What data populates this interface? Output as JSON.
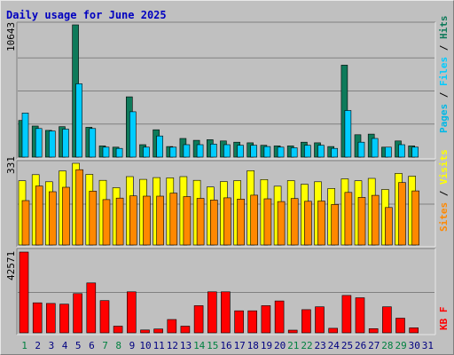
{
  "title": "Daily usage for June 2025",
  "colors": {
    "hits": "#0e7a5a",
    "files": "#00ccff",
    "pages": "#00b8e6",
    "visits": "#ffff00",
    "sites": "#ff8800",
    "kbytes": "#ff0000",
    "weekend_label": "#008040",
    "weekday_label": "#000080"
  },
  "chart_data": [
    {
      "type": "bar",
      "panel": "hits_files_pages",
      "title": "Daily usage for June 2025",
      "categories": [
        "1",
        "2",
        "3",
        "4",
        "5",
        "6",
        "7",
        "8",
        "9",
        "10",
        "11",
        "12",
        "13",
        "14",
        "15",
        "16",
        "17",
        "18",
        "19",
        "20",
        "21",
        "22",
        "23",
        "24",
        "25",
        "26",
        "27",
        "28",
        "29",
        "30",
        "31"
      ],
      "weekend_days": [
        "1",
        "7",
        "8",
        "14",
        "15",
        "21",
        "22",
        "28",
        "29"
      ],
      "ylim": [
        0,
        10643
      ],
      "y_max_label": "10643",
      "series": [
        {
          "name": "Hits",
          "values": [
            2950,
            2500,
            2150,
            2450,
            10643,
            2400,
            900,
            800,
            4850,
            1000,
            2200,
            850,
            1500,
            1350,
            1400,
            1300,
            1200,
            1150,
            950,
            900,
            900,
            1200,
            1150,
            850,
            7400,
            1800,
            1850,
            800,
            1300,
            900,
            0
          ]
        },
        {
          "name": "Files",
          "values": [
            3550,
            2300,
            2100,
            2250,
            5900,
            2300,
            800,
            700,
            3650,
            800,
            1700,
            800,
            1000,
            1000,
            1050,
            1000,
            950,
            950,
            850,
            800,
            750,
            950,
            950,
            700,
            3750,
            1200,
            1500,
            800,
            1000,
            800,
            0
          ]
        },
        {
          "name": "Pages",
          "values": [
            1200,
            700,
            500,
            1000,
            1550,
            900,
            300,
            250,
            1100,
            350,
            600,
            200,
            400,
            350,
            400,
            350,
            300,
            350,
            250,
            250,
            300,
            300,
            300,
            200,
            1550,
            400,
            500,
            250,
            400,
            250,
            0
          ]
        }
      ],
      "legend": [
        "Pages",
        "Files",
        "Hits"
      ]
    },
    {
      "type": "bar",
      "panel": "visits_sites",
      "categories": [
        "1",
        "2",
        "3",
        "4",
        "5",
        "6",
        "7",
        "8",
        "9",
        "10",
        "11",
        "12",
        "13",
        "14",
        "15",
        "16",
        "17",
        "18",
        "19",
        "20",
        "21",
        "22",
        "23",
        "24",
        "25",
        "26",
        "27",
        "28",
        "29",
        "30",
        "31"
      ],
      "ylim": [
        0,
        331
      ],
      "y_max_label": "331",
      "series": [
        {
          "name": "Visits",
          "values": [
            260,
            285,
            256,
            300,
            331,
            286,
            262,
            232,
            277,
            266,
            273,
            272,
            277,
            262,
            235,
            257,
            261,
            301,
            265,
            238,
            261,
            246,
            256,
            229,
            268,
            260,
            270,
            225,
            290,
            279,
            0
          ]
        },
        {
          "name": "Sites",
          "values": [
            180,
            239,
            216,
            234,
            305,
            218,
            184,
            190,
            199,
            198,
            198,
            210,
            196,
            189,
            182,
            191,
            186,
            202,
            187,
            176,
            188,
            177,
            178,
            164,
            213,
            193,
            201,
            152,
            253,
            219,
            0
          ]
        }
      ],
      "legend": [
        "Sites",
        "Visits"
      ]
    },
    {
      "type": "bar",
      "panel": "kbytes",
      "categories": [
        "1",
        "2",
        "3",
        "4",
        "5",
        "6",
        "7",
        "8",
        "9",
        "10",
        "11",
        "12",
        "13",
        "14",
        "15",
        "16",
        "17",
        "18",
        "19",
        "20",
        "21",
        "22",
        "23",
        "24",
        "25",
        "26",
        "27",
        "28",
        "29",
        "30",
        "31"
      ],
      "ylim": [
        0,
        42571
      ],
      "y_max_label": "42571",
      "series": [
        {
          "name": "KB F",
          "values": [
            42571,
            15800,
            15500,
            15100,
            20700,
            26300,
            17000,
            3500,
            21600,
            1500,
            2000,
            7000,
            3500,
            14300,
            21600,
            21600,
            11600,
            11600,
            14300,
            16800,
            1400,
            12200,
            13700,
            2400,
            19700,
            18500,
            2200,
            13700,
            7700,
            2600,
            0
          ]
        }
      ],
      "legend": [
        "KB F"
      ]
    }
  ]
}
